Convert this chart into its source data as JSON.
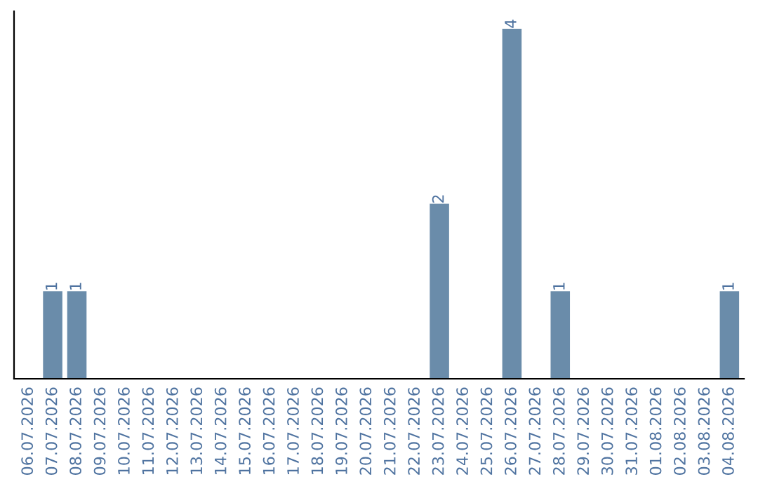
{
  "chart_data": {
    "type": "bar",
    "categories": [
      "06.07.2026",
      "07.07.2026",
      "08.07.2026",
      "09.07.2026",
      "10.07.2026",
      "11.07.2026",
      "12.07.2026",
      "13.07.2026",
      "14.07.2026",
      "15.07.2026",
      "16.07.2026",
      "17.07.2026",
      "18.07.2026",
      "19.07.2026",
      "20.07.2026",
      "21.07.2026",
      "22.07.2026",
      "23.07.2026",
      "24.07.2026",
      "25.07.2026",
      "26.07.2026",
      "27.07.2026",
      "28.07.2026",
      "29.07.2026",
      "30.07.2026",
      "31.07.2026",
      "01.08.2026",
      "02.08.2026",
      "03.08.2026",
      "04.08.2026"
    ],
    "values": [
      0,
      1,
      1,
      0,
      0,
      0,
      0,
      0,
      0,
      0,
      0,
      0,
      0,
      0,
      0,
      0,
      0,
      2,
      0,
      0,
      4,
      0,
      1,
      0,
      0,
      0,
      0,
      0,
      0,
      1
    ],
    "value_labels": [
      null,
      "1",
      "1",
      null,
      null,
      null,
      null,
      null,
      null,
      null,
      null,
      null,
      null,
      null,
      null,
      null,
      null,
      "2",
      null,
      null,
      "4",
      null,
      "1",
      null,
      null,
      null,
      null,
      null,
      null,
      "1"
    ],
    "color": "#6a8caa",
    "tick_labels": "x",
    "grid": false,
    "legend": false
  }
}
